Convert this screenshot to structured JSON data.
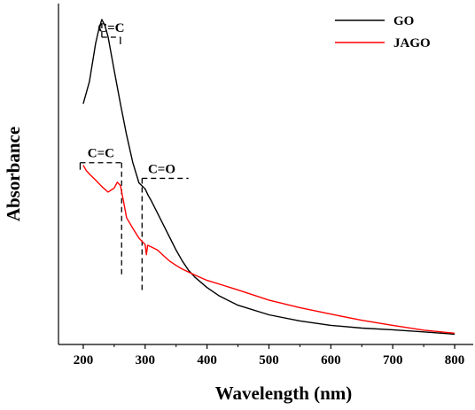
{
  "chart_data": {
    "type": "line",
    "xlabel": "Wavelength (nm)",
    "ylabel": "Absorbance",
    "xlim": [
      160,
      830
    ],
    "ylim": [
      0,
      1.0
    ],
    "xticks": [
      200,
      300,
      400,
      500,
      600,
      700,
      800
    ],
    "y_tick_labels_shown": false,
    "legend_position": "top-right",
    "series": [
      {
        "name": "GO",
        "color": "#000000",
        "x": [
          200,
          210,
          220,
          225,
          230,
          235,
          240,
          250,
          260,
          270,
          280,
          290,
          300,
          305,
          310,
          320,
          330,
          340,
          350,
          360,
          370,
          380,
          400,
          420,
          450,
          500,
          550,
          600,
          650,
          700,
          750,
          800
        ],
        "y": [
          0.706,
          0.771,
          0.883,
          0.923,
          0.953,
          0.935,
          0.903,
          0.803,
          0.706,
          0.615,
          0.534,
          0.474,
          0.456,
          0.437,
          0.421,
          0.385,
          0.349,
          0.313,
          0.277,
          0.245,
          0.218,
          0.198,
          0.167,
          0.142,
          0.115,
          0.087,
          0.069,
          0.056,
          0.048,
          0.043,
          0.037,
          0.03
        ]
      },
      {
        "name": "JAGO",
        "color": "#ff0000",
        "x": [
          200,
          205,
          210,
          220,
          230,
          240,
          250,
          255,
          260,
          265,
          270,
          280,
          290,
          300,
          302,
          304,
          310,
          320,
          330,
          340,
          350,
          360,
          380,
          400,
          450,
          500,
          550,
          600,
          650,
          700,
          750,
          800
        ],
        "y": [
          0.526,
          0.51,
          0.5,
          0.482,
          0.463,
          0.447,
          0.459,
          0.476,
          0.466,
          0.421,
          0.372,
          0.341,
          0.312,
          0.293,
          0.263,
          0.291,
          0.286,
          0.277,
          0.26,
          0.244,
          0.232,
          0.221,
          0.204,
          0.188,
          0.16,
          0.13,
          0.108,
          0.089,
          0.071,
          0.056,
          0.042,
          0.033
        ]
      }
    ],
    "annotations": [
      {
        "label": "C=C",
        "x": 230,
        "x_end": 260,
        "y": 0.953
      },
      {
        "label": "C=C",
        "x": 195,
        "x_end": 262,
        "y": 0.476
      },
      {
        "label": "C=O",
        "x": 295,
        "x_end": 370,
        "y": 0.456
      }
    ]
  }
}
